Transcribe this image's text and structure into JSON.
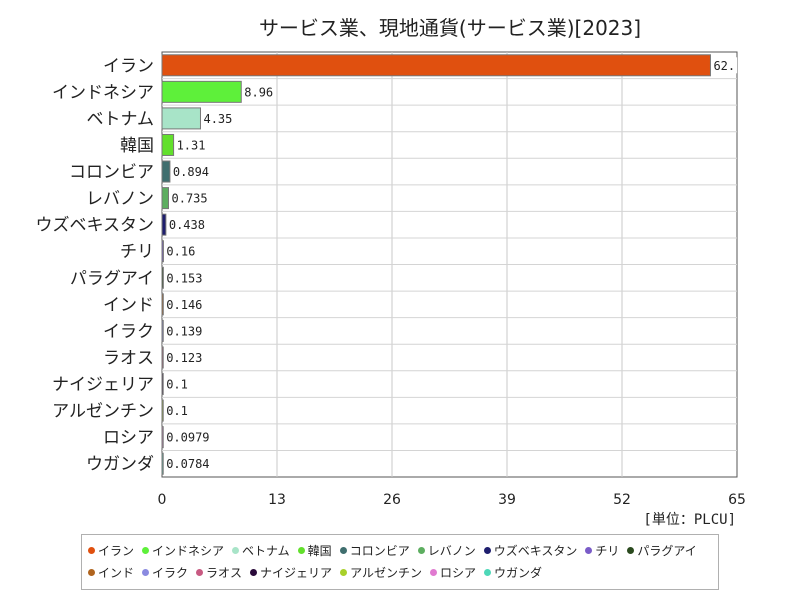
{
  "chart_data": {
    "type": "bar",
    "orientation": "horizontal",
    "title": "サービス業、現地通貨(サービス業)[2023]",
    "unit_label": "[単位：PLCU]",
    "xlim": [
      0,
      65
    ],
    "xticks": [
      "0",
      "13",
      "26",
      "39",
      "52",
      "65"
    ],
    "grid": true,
    "legend_position": "bottom",
    "categories": [
      "イラン",
      "インドネシア",
      "ベトナム",
      "韓国",
      "コロンビア",
      "レバノン",
      "ウズベキスタン",
      "チリ",
      "パラグアイ",
      "インド",
      "イラク",
      "ラオス",
      "ナイジェリア",
      "アルゼンチン",
      "ロシア",
      "ウガンダ"
    ],
    "values": [
      62,
      8.96,
      4.35,
      1.31,
      0.894,
      0.735,
      0.438,
      0.16,
      0.153,
      0.146,
      0.139,
      0.123,
      0.1,
      0.1,
      0.0979,
      0.0784
    ],
    "value_labels": [
      "62.",
      "8.96",
      "4.35",
      "1.31",
      "0.894",
      "0.735",
      "0.438",
      "0.16",
      "0.153",
      "0.146",
      "0.139",
      "0.123",
      "0.1",
      "0.1",
      "0.0979",
      "0.0784"
    ],
    "colors": [
      "#e0500f",
      "#5ef03a",
      "#a8e4c8",
      "#62e02c",
      "#3f6e6e",
      "#5dae60",
      "#1e1e6e",
      "#7a5cc8",
      "#2a4a1e",
      "#b0641e",
      "#8a8ae0",
      "#c85a82",
      "#2a0a3a",
      "#a8d02a",
      "#e07ad0",
      "#4ed8b8"
    ]
  }
}
